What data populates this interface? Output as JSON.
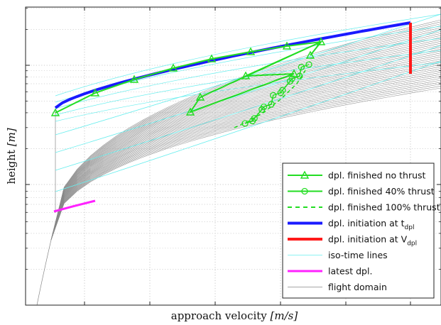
{
  "chart_data": {
    "type": "line",
    "xlabel_text": "approach velocity ",
    "xlabel_unit": "[m/s]",
    "ylabel_text": "height ",
    "ylabel_unit": "[m]",
    "y_scale": "log",
    "grid": true,
    "legend_position": "bottom-right",
    "legend": [
      {
        "text": "dpl. finished no thrust",
        "sub": "",
        "color": "#22dd22",
        "style": "solid",
        "marker": "triangle"
      },
      {
        "text": "dpl. finished 40% thrust",
        "sub": "",
        "color": "#22dd22",
        "style": "solid",
        "marker": "circle"
      },
      {
        "text": "dpl. finished 100% thrust",
        "sub": "",
        "color": "#22dd22",
        "style": "dashed",
        "marker": ""
      },
      {
        "text": "dpl. initiation at t",
        "sub": "dpl",
        "color": "#1a1aff",
        "style": "thick",
        "marker": ""
      },
      {
        "text": "dpl. initiation at V",
        "sub": "dpl",
        "color": "#ff1a1a",
        "style": "thick",
        "marker": ""
      },
      {
        "text": "iso-time lines",
        "sub": "",
        "color": "#66eeee",
        "style": "thin",
        "marker": ""
      },
      {
        "text": "latest dpl.",
        "sub": "",
        "color": "#ff22ff",
        "style": "medium",
        "marker": ""
      },
      {
        "text": "flight domain",
        "sub": "",
        "color": "#888888",
        "style": "thin",
        "marker": ""
      }
    ],
    "colors": {
      "no_thrust": "#22dd22",
      "initiation_t": "#1a1aff",
      "initiation_v": "#ff1a1a",
      "iso_time": "#66eeee",
      "latest": "#ff22ff",
      "flight_domain": "#888888"
    }
  }
}
